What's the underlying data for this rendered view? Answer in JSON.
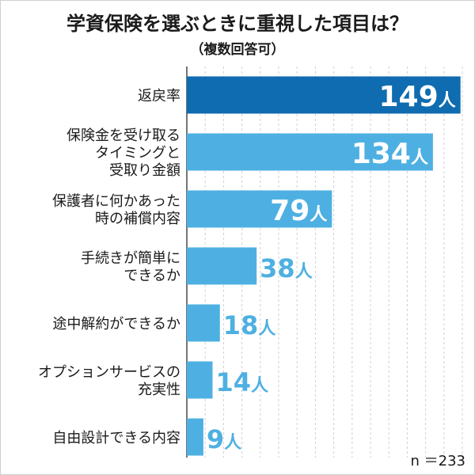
{
  "chart_data": {
    "type": "bar",
    "orientation": "horizontal",
    "title": "学資保険を選ぶときに重視した項目は？",
    "subtitle": "（複数回答可）",
    "categories": [
      [
        "返戻率"
      ],
      [
        "保険金を受け取る",
        "タイミングと",
        "受取り金額"
      ],
      [
        "保護者に何かあった",
        "時の補償内容"
      ],
      [
        "手続きが簡単に",
        "できるか"
      ],
      [
        "途中解約ができるか"
      ],
      [
        "オプションサービスの",
        "充実性"
      ],
      [
        "自由設計できる内容"
      ]
    ],
    "values": [
      149,
      134,
      79,
      38,
      18,
      14,
      9
    ],
    "unit": "人",
    "xlim": [
      0,
      150
    ],
    "grid": true,
    "footnote": "n ＝233",
    "colors": {
      "highlight": "#0f6cb0",
      "bar": "#4eb0e2",
      "grid": "#cfcfcf",
      "axis": "#1a1a1a",
      "label_inside": "#ffffff",
      "label_outline_dark": "#0f6cb0",
      "label_outline_light": "#4eb0e2"
    }
  }
}
